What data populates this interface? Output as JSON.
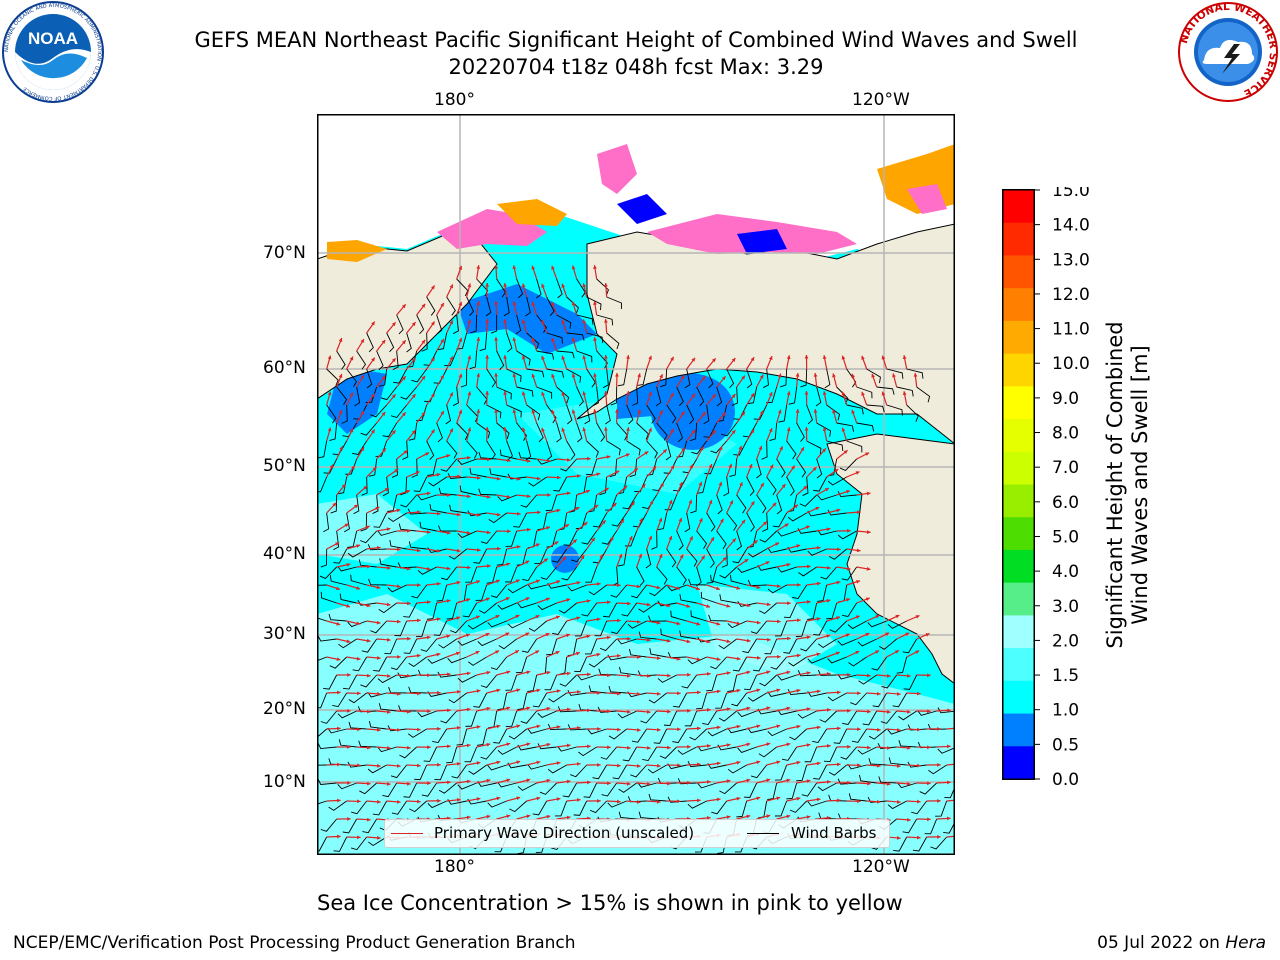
{
  "title": {
    "line1": "GEFS MEAN Northeast Pacific Significant Height of Combined Wind Waves and Swell",
    "line2": "20220704 t18z 048h fcst   Max: 3.29"
  },
  "logos": {
    "left": {
      "text": "NOAA",
      "ring_text": "NATIONAL OCEANIC AND ATMOSPHERIC ADMINISTRATION · U.S. DEPARTMENT OF COMMERCE"
    },
    "right": {
      "ring_text": "NATIONAL WEATHER SERVICE"
    }
  },
  "map": {
    "lon_labels_top": [
      "180°",
      "120°W"
    ],
    "lon_labels_bottom": [
      "180°",
      "120°W"
    ],
    "lat_labels": [
      "70°N",
      "60°N",
      "50°N",
      "40°N",
      "30°N",
      "20°N",
      "10°N"
    ],
    "colors": {
      "ocean_main": "#00ffff",
      "ocean_light": "#a0ffff",
      "ocean_mid": "#4dffff",
      "ocean_dark": "#0080ff",
      "land": "#efecdc",
      "ice": "#ff6ec7",
      "ice_orange": "#ffa500"
    }
  },
  "legend": {
    "wave_label": "Primary Wave Direction (unscaled)",
    "wave_color": "#dd2222",
    "wind_label": "Wind Barbs",
    "wind_color": "#000000"
  },
  "colorbar": {
    "label_line1": "Significant Height of Combined",
    "label_line2": "Wind Waves and Swell [m]",
    "ticks": [
      "15.0",
      "14.0",
      "13.0",
      "12.0",
      "11.0",
      "10.0",
      "9.0",
      "8.0",
      "7.0",
      "6.0",
      "5.0",
      "4.0",
      "3.0",
      "2.0",
      "1.5",
      "1.0",
      "0.5",
      "0.0"
    ],
    "colors": [
      "#ff0000",
      "#ff2a00",
      "#ff5500",
      "#ff8000",
      "#ffaa00",
      "#ffd500",
      "#ffff00",
      "#e6ff00",
      "#ccff00",
      "#99ee00",
      "#4ddd00",
      "#00dd22",
      "#55ee88",
      "#a0ffff",
      "#4dffff",
      "#00ffff",
      "#0080ff",
      "#0000ff"
    ]
  },
  "note": "Sea Ice Concentration > 15% is shown in pink to yellow",
  "footer": {
    "left": "NCEP/EMC/Verification Post Processing Product Generation Branch",
    "date": "05 Jul 2022 on ",
    "machine": "Hera"
  }
}
